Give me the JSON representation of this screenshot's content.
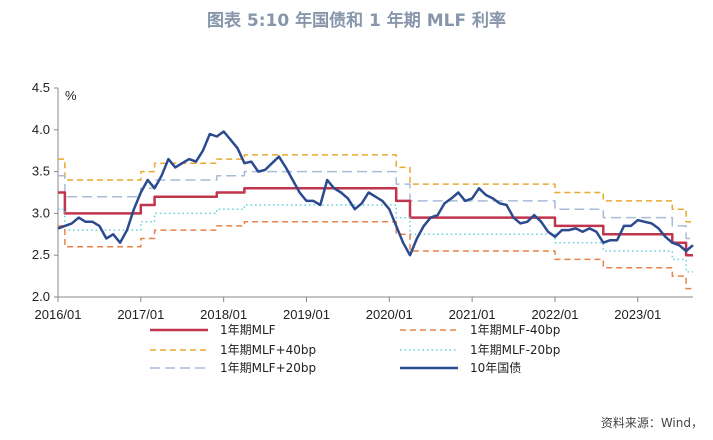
{
  "title": "图表 5:10 年国债和 1 年期 MLF 利率",
  "source": "资料来源：Wind，",
  "chart_data": {
    "type": "line",
    "ylabel": "%",
    "ylim": [
      2.0,
      4.5
    ],
    "yticks": [
      "2.0",
      "2.5",
      "3.0",
      "3.5",
      "4.0",
      "4.5"
    ],
    "xlim": [
      "2016/01",
      "2023/09"
    ],
    "xticks": [
      "2016/01",
      "2017/01",
      "2018/01",
      "2019/01",
      "2020/01",
      "2021/01",
      "2022/01",
      "2023/01"
    ],
    "grid": false,
    "legend_position": "bottom",
    "mlf_steps": [
      [
        "2016/01",
        3.25
      ],
      [
        "2016/02",
        3.0
      ],
      [
        "2017/01",
        3.1
      ],
      [
        "2017/03",
        3.2
      ],
      [
        "2017/12",
        3.25
      ],
      [
        "2018/04",
        3.3
      ],
      [
        "2020/02",
        3.15
      ],
      [
        "2020/04",
        2.95
      ],
      [
        "2022/01",
        2.85
      ],
      [
        "2022/08",
        2.75
      ],
      [
        "2023/06",
        2.65
      ],
      [
        "2023/08",
        2.5
      ],
      [
        "2023/09",
        2.5
      ]
    ],
    "series": [
      {
        "name": "1年期MLF",
        "key": "mlf",
        "offset": 0,
        "color": "#c0354c",
        "style": "solid",
        "width": 2.5
      },
      {
        "name": "1年期MLF-40bp",
        "key": "m40",
        "offset": -0.4,
        "color": "#e8824a",
        "style": "dash",
        "width": 1.5
      },
      {
        "name": "1年期MLF+40bp",
        "key": "p40",
        "offset": 0.4,
        "color": "#e8a92d",
        "style": "dash",
        "width": 1.5
      },
      {
        "name": "1年期MLF-20bp",
        "key": "m20",
        "offset": -0.2,
        "color": "#5fd0e0",
        "style": "dot",
        "width": 1.5
      },
      {
        "name": "1年期MLF+20bp",
        "key": "p20",
        "offset": 0.2,
        "color": "#a6bcd9",
        "style": "longdash",
        "width": 1.5
      },
      {
        "name": "10年国债",
        "key": "gov",
        "color": "#2c4a8f",
        "style": "solid",
        "width": 2.5,
        "points": [
          [
            "2016/01",
            2.82
          ],
          [
            "2016/02",
            2.85
          ],
          [
            "2016/03",
            2.88
          ],
          [
            "2016/04",
            2.95
          ],
          [
            "2016/05",
            2.9
          ],
          [
            "2016/06",
            2.9
          ],
          [
            "2016/07",
            2.85
          ],
          [
            "2016/08",
            2.7
          ],
          [
            "2016/09",
            2.75
          ],
          [
            "2016/10",
            2.65
          ],
          [
            "2016/11",
            2.8
          ],
          [
            "2016/12",
            3.05
          ],
          [
            "2017/01",
            3.25
          ],
          [
            "2017/02",
            3.4
          ],
          [
            "2017/03",
            3.3
          ],
          [
            "2017/04",
            3.45
          ],
          [
            "2017/05",
            3.65
          ],
          [
            "2017/06",
            3.55
          ],
          [
            "2017/07",
            3.6
          ],
          [
            "2017/08",
            3.65
          ],
          [
            "2017/09",
            3.62
          ],
          [
            "2017/10",
            3.75
          ],
          [
            "2017/11",
            3.95
          ],
          [
            "2017/12",
            3.92
          ],
          [
            "2018/01",
            3.98
          ],
          [
            "2018/02",
            3.88
          ],
          [
            "2018/03",
            3.78
          ],
          [
            "2018/04",
            3.6
          ],
          [
            "2018/05",
            3.62
          ],
          [
            "2018/06",
            3.5
          ],
          [
            "2018/07",
            3.52
          ],
          [
            "2018/08",
            3.6
          ],
          [
            "2018/09",
            3.68
          ],
          [
            "2018/10",
            3.55
          ],
          [
            "2018/11",
            3.4
          ],
          [
            "2018/12",
            3.25
          ],
          [
            "2019/01",
            3.15
          ],
          [
            "2019/02",
            3.15
          ],
          [
            "2019/03",
            3.1
          ],
          [
            "2019/04",
            3.4
          ],
          [
            "2019/05",
            3.3
          ],
          [
            "2019/06",
            3.25
          ],
          [
            "2019/07",
            3.18
          ],
          [
            "2019/08",
            3.05
          ],
          [
            "2019/09",
            3.12
          ],
          [
            "2019/10",
            3.25
          ],
          [
            "2019/11",
            3.2
          ],
          [
            "2019/12",
            3.15
          ],
          [
            "2020/01",
            3.05
          ],
          [
            "2020/02",
            2.85
          ],
          [
            "2020/03",
            2.65
          ],
          [
            "2020/04",
            2.5
          ],
          [
            "2020/05",
            2.7
          ],
          [
            "2020/06",
            2.85
          ],
          [
            "2020/07",
            2.95
          ],
          [
            "2020/08",
            2.98
          ],
          [
            "2020/09",
            3.12
          ],
          [
            "2020/10",
            3.18
          ],
          [
            "2020/11",
            3.25
          ],
          [
            "2020/12",
            3.15
          ],
          [
            "2021/01",
            3.18
          ],
          [
            "2021/02",
            3.3
          ],
          [
            "2021/03",
            3.22
          ],
          [
            "2021/04",
            3.18
          ],
          [
            "2021/05",
            3.12
          ],
          [
            "2021/06",
            3.1
          ],
          [
            "2021/07",
            2.95
          ],
          [
            "2021/08",
            2.88
          ],
          [
            "2021/09",
            2.9
          ],
          [
            "2021/10",
            2.98
          ],
          [
            "2021/11",
            2.9
          ],
          [
            "2021/12",
            2.78
          ],
          [
            "2022/01",
            2.72
          ],
          [
            "2022/02",
            2.8
          ],
          [
            "2022/03",
            2.8
          ],
          [
            "2022/04",
            2.82
          ],
          [
            "2022/05",
            2.78
          ],
          [
            "2022/06",
            2.82
          ],
          [
            "2022/07",
            2.78
          ],
          [
            "2022/08",
            2.65
          ],
          [
            "2022/09",
            2.68
          ],
          [
            "2022/10",
            2.68
          ],
          [
            "2022/11",
            2.85
          ],
          [
            "2022/12",
            2.85
          ],
          [
            "2023/01",
            2.92
          ],
          [
            "2023/02",
            2.9
          ],
          [
            "2023/03",
            2.88
          ],
          [
            "2023/04",
            2.82
          ],
          [
            "2023/05",
            2.72
          ],
          [
            "2023/06",
            2.65
          ],
          [
            "2023/07",
            2.62
          ],
          [
            "2023/08",
            2.55
          ],
          [
            "2023/09",
            2.62
          ]
        ]
      }
    ]
  }
}
